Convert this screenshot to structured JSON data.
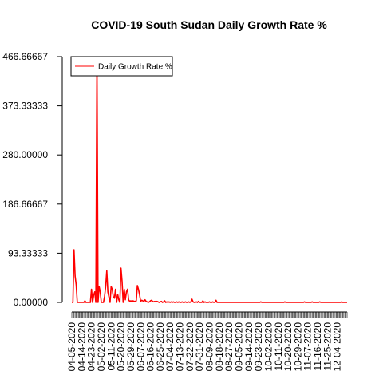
{
  "chart_data": {
    "type": "line",
    "title": "COVID-19 South Sudan Daily Growth Rate %",
    "xlabel": "",
    "ylabel": "",
    "ylim": [
      0,
      466.66667
    ],
    "yticks": [
      "0.00000",
      "93.33333",
      "186.66667",
      "280.00000",
      "373.33333",
      "466.66667"
    ],
    "ytick_values": [
      0,
      93.33333,
      186.66667,
      280.0,
      373.33333,
      466.66667
    ],
    "x_start": "04-05-2020",
    "x_end": "12-13-2020",
    "xtick_labels": [
      "04-05-2020",
      "04-14-2020",
      "04-23-2020",
      "05-02-2020",
      "05-11-2020",
      "05-20-2020",
      "05-29-2020",
      "06-07-2020",
      "06-16-2020",
      "06-25-2020",
      "07-04-2020",
      "07-13-2020",
      "07-22-2020",
      "07-31-2020",
      "08-09-2020",
      "08-18-2020",
      "08-27-2020",
      "09-05-2020",
      "09-14-2020",
      "09-23-2020",
      "10-02-2020",
      "10-11-2020",
      "10-20-2020",
      "10-29-2020",
      "11-07-2020",
      "11-16-2020",
      "11-25-2020",
      "12-04-2020"
    ],
    "grid": false,
    "legend_position": "top-left",
    "series": [
      {
        "name": "Daily Growth Rate %",
        "color": "#ff0000",
        "points": [
          [
            "04-05-2020",
            0
          ],
          [
            "04-06-2020",
            0
          ],
          [
            "04-07-2020",
            100
          ],
          [
            "04-08-2020",
            50
          ],
          [
            "04-09-2020",
            33.3
          ],
          [
            "04-10-2020",
            0
          ],
          [
            "04-11-2020",
            0
          ],
          [
            "04-12-2020",
            0
          ],
          [
            "04-16-2020",
            0
          ],
          [
            "04-17-2020",
            3
          ],
          [
            "04-18-2020",
            0
          ],
          [
            "04-22-2020",
            0
          ],
          [
            "04-23-2020",
            25
          ],
          [
            "04-24-2020",
            0
          ],
          [
            "04-25-2020",
            14
          ],
          [
            "04-26-2020",
            20
          ],
          [
            "04-27-2020",
            0
          ],
          [
            "04-28-2020",
            466.66667
          ],
          [
            "04-29-2020",
            0
          ],
          [
            "04-30-2020",
            30
          ],
          [
            "05-01-2020",
            20
          ],
          [
            "05-02-2020",
            0
          ],
          [
            "05-04-2020",
            0
          ],
          [
            "05-05-2020",
            12
          ],
          [
            "05-06-2020",
            30
          ],
          [
            "05-07-2020",
            60
          ],
          [
            "05-08-2020",
            20
          ],
          [
            "05-09-2020",
            10
          ],
          [
            "05-10-2020",
            0
          ],
          [
            "05-11-2020",
            30
          ],
          [
            "05-12-2020",
            25
          ],
          [
            "05-13-2020",
            10
          ],
          [
            "05-14-2020",
            8
          ],
          [
            "05-15-2020",
            25
          ],
          [
            "05-16-2020",
            0
          ],
          [
            "05-17-2020",
            15
          ],
          [
            "05-18-2020",
            5
          ],
          [
            "05-19-2020",
            0
          ],
          [
            "05-20-2020",
            65
          ],
          [
            "05-21-2020",
            40
          ],
          [
            "05-22-2020",
            0
          ],
          [
            "05-23-2020",
            25
          ],
          [
            "05-24-2020",
            5
          ],
          [
            "05-25-2020",
            20
          ],
          [
            "05-26-2020",
            25
          ],
          [
            "05-27-2020",
            5
          ],
          [
            "05-28-2020",
            2
          ],
          [
            "05-29-2020",
            3
          ],
          [
            "05-30-2020",
            2
          ],
          [
            "05-31-2020",
            3
          ],
          [
            "06-01-2020",
            2
          ],
          [
            "06-02-2020",
            2
          ],
          [
            "06-03-2020",
            3
          ],
          [
            "06-04-2020",
            32
          ],
          [
            "06-05-2020",
            25
          ],
          [
            "06-06-2020",
            15
          ],
          [
            "06-07-2020",
            2
          ],
          [
            "06-08-2020",
            4
          ],
          [
            "06-09-2020",
            3
          ],
          [
            "06-10-2020",
            2
          ],
          [
            "06-11-2020",
            5
          ],
          [
            "06-12-2020",
            2
          ],
          [
            "06-13-2020",
            1
          ],
          [
            "06-14-2020",
            0
          ],
          [
            "06-15-2020",
            1
          ],
          [
            "06-16-2020",
            3
          ],
          [
            "06-17-2020",
            4
          ],
          [
            "06-18-2020",
            2
          ],
          [
            "06-19-2020",
            1
          ],
          [
            "06-20-2020",
            2
          ],
          [
            "06-21-2020",
            1
          ],
          [
            "06-22-2020",
            2
          ],
          [
            "06-23-2020",
            1
          ],
          [
            "06-24-2020",
            0
          ],
          [
            "06-25-2020",
            1
          ],
          [
            "06-26-2020",
            2
          ],
          [
            "06-27-2020",
            0
          ],
          [
            "06-28-2020",
            1
          ],
          [
            "06-29-2020",
            3
          ],
          [
            "06-30-2020",
            0
          ],
          [
            "07-01-2020",
            1
          ],
          [
            "07-02-2020",
            0
          ],
          [
            "07-03-2020",
            1
          ],
          [
            "07-04-2020",
            0
          ],
          [
            "07-05-2020",
            1
          ],
          [
            "07-06-2020",
            0
          ],
          [
            "07-07-2020",
            1
          ],
          [
            "07-08-2020",
            0
          ],
          [
            "07-09-2020",
            0
          ],
          [
            "07-10-2020",
            1
          ],
          [
            "07-11-2020",
            0
          ],
          [
            "07-12-2020",
            1
          ],
          [
            "07-13-2020",
            0
          ],
          [
            "07-14-2020",
            0
          ],
          [
            "07-15-2020",
            1
          ],
          [
            "07-16-2020",
            0
          ],
          [
            "07-17-2020",
            0
          ],
          [
            "07-18-2020",
            1
          ],
          [
            "07-19-2020",
            0
          ],
          [
            "07-20-2020",
            0
          ],
          [
            "07-21-2020",
            1
          ],
          [
            "07-22-2020",
            0
          ],
          [
            "07-23-2020",
            1
          ],
          [
            "07-24-2020",
            6
          ],
          [
            "07-25-2020",
            1
          ],
          [
            "07-26-2020",
            0
          ],
          [
            "07-27-2020",
            0
          ],
          [
            "07-28-2020",
            1
          ],
          [
            "07-29-2020",
            0
          ],
          [
            "07-30-2020",
            2
          ],
          [
            "07-31-2020",
            0
          ],
          [
            "08-01-2020",
            0
          ],
          [
            "08-02-2020",
            0
          ],
          [
            "08-03-2020",
            3
          ],
          [
            "08-04-2020",
            0
          ],
          [
            "08-05-2020",
            1
          ],
          [
            "08-06-2020",
            0
          ],
          [
            "08-07-2020",
            0
          ],
          [
            "08-08-2020",
            0
          ],
          [
            "08-09-2020",
            1
          ],
          [
            "08-10-2020",
            0
          ],
          [
            "08-11-2020",
            0
          ],
          [
            "08-12-2020",
            1
          ],
          [
            "08-13-2020",
            0
          ],
          [
            "08-14-2020",
            0
          ],
          [
            "08-15-2020",
            4
          ],
          [
            "08-16-2020",
            0
          ],
          [
            "08-17-2020",
            0
          ],
          [
            "08-18-2020",
            0
          ],
          [
            "08-19-2020",
            0
          ],
          [
            "08-20-2020",
            0
          ],
          [
            "08-21-2020",
            0
          ],
          [
            "08-22-2020",
            0
          ],
          [
            "08-23-2020",
            0
          ],
          [
            "08-24-2020",
            0
          ],
          [
            "08-25-2020",
            0
          ],
          [
            "08-26-2020",
            0
          ],
          [
            "08-27-2020",
            0
          ],
          [
            "08-28-2020",
            0
          ],
          [
            "08-29-2020",
            0
          ],
          [
            "08-30-2020",
            0
          ],
          [
            "08-31-2020",
            0
          ],
          [
            "09-01-2020",
            0
          ],
          [
            "09-02-2020",
            0
          ],
          [
            "09-03-2020",
            0
          ],
          [
            "09-04-2020",
            0
          ],
          [
            "09-05-2020",
            0
          ],
          [
            "09-06-2020",
            0
          ],
          [
            "09-07-2020",
            0
          ],
          [
            "09-08-2020",
            0
          ],
          [
            "09-09-2020",
            0
          ],
          [
            "09-10-2020",
            0
          ],
          [
            "09-11-2020",
            0
          ],
          [
            "09-12-2020",
            0
          ],
          [
            "09-13-2020",
            0
          ],
          [
            "09-14-2020",
            0
          ],
          [
            "09-15-2020",
            0
          ],
          [
            "09-16-2020",
            0
          ],
          [
            "09-17-2020",
            0
          ],
          [
            "09-18-2020",
            0
          ],
          [
            "09-19-2020",
            0
          ],
          [
            "09-20-2020",
            0
          ],
          [
            "09-21-2020",
            0
          ],
          [
            "09-22-2020",
            0
          ],
          [
            "09-23-2020",
            0
          ],
          [
            "09-24-2020",
            0
          ],
          [
            "09-25-2020",
            1
          ],
          [
            "09-26-2020",
            0
          ],
          [
            "09-27-2020",
            0
          ],
          [
            "09-28-2020",
            0
          ],
          [
            "09-29-2020",
            0
          ],
          [
            "09-30-2020",
            0
          ],
          [
            "10-01-2020",
            0
          ],
          [
            "10-02-2020",
            0
          ],
          [
            "10-03-2020",
            0
          ],
          [
            "10-04-2020",
            0
          ],
          [
            "10-05-2020",
            0
          ],
          [
            "10-06-2020",
            0
          ],
          [
            "10-07-2020",
            0
          ],
          [
            "10-08-2020",
            0
          ],
          [
            "10-09-2020",
            0
          ],
          [
            "10-10-2020",
            0
          ],
          [
            "10-11-2020",
            0
          ],
          [
            "10-12-2020",
            0
          ],
          [
            "10-13-2020",
            0
          ],
          [
            "10-14-2020",
            0
          ],
          [
            "10-15-2020",
            0
          ],
          [
            "10-16-2020",
            0
          ],
          [
            "10-17-2020",
            1
          ],
          [
            "10-18-2020",
            0
          ],
          [
            "10-19-2020",
            0
          ],
          [
            "10-20-2020",
            0
          ],
          [
            "10-21-2020",
            0
          ],
          [
            "10-22-2020",
            0
          ],
          [
            "10-23-2020",
            0
          ],
          [
            "10-24-2020",
            0
          ],
          [
            "10-25-2020",
            0
          ],
          [
            "10-26-2020",
            0
          ],
          [
            "10-27-2020",
            0
          ],
          [
            "10-28-2020",
            0
          ],
          [
            "10-29-2020",
            0
          ],
          [
            "10-30-2020",
            0
          ],
          [
            "10-31-2020",
            0
          ],
          [
            "11-01-2020",
            0
          ],
          [
            "11-02-2020",
            0
          ],
          [
            "11-03-2020",
            0
          ],
          [
            "11-04-2020",
            1
          ],
          [
            "11-05-2020",
            0
          ],
          [
            "11-06-2020",
            0
          ],
          [
            "11-07-2020",
            0
          ],
          [
            "11-08-2020",
            0
          ],
          [
            "11-09-2020",
            0
          ],
          [
            "11-10-2020",
            0
          ],
          [
            "11-11-2020",
            1
          ],
          [
            "11-12-2020",
            0
          ],
          [
            "11-13-2020",
            0
          ],
          [
            "11-14-2020",
            0
          ],
          [
            "11-15-2020",
            0
          ],
          [
            "11-16-2020",
            0
          ],
          [
            "11-17-2020",
            0
          ],
          [
            "11-18-2020",
            1
          ],
          [
            "11-19-2020",
            0
          ],
          [
            "11-20-2020",
            0
          ],
          [
            "11-21-2020",
            0
          ],
          [
            "11-22-2020",
            0
          ],
          [
            "11-23-2020",
            0
          ],
          [
            "11-24-2020",
            0
          ],
          [
            "11-25-2020",
            0
          ],
          [
            "11-26-2020",
            0
          ],
          [
            "11-27-2020",
            0
          ],
          [
            "11-28-2020",
            0
          ],
          [
            "11-29-2020",
            0
          ],
          [
            "11-30-2020",
            0
          ],
          [
            "12-01-2020",
            0
          ],
          [
            "12-02-2020",
            0
          ],
          [
            "12-03-2020",
            0
          ],
          [
            "12-04-2020",
            0
          ],
          [
            "12-05-2020",
            0
          ],
          [
            "12-06-2020",
            0
          ],
          [
            "12-07-2020",
            0
          ],
          [
            "12-08-2020",
            1
          ],
          [
            "12-09-2020",
            0
          ],
          [
            "12-10-2020",
            0
          ],
          [
            "12-11-2020",
            0
          ],
          [
            "12-12-2020",
            0
          ],
          [
            "12-13-2020",
            0
          ]
        ]
      }
    ]
  }
}
